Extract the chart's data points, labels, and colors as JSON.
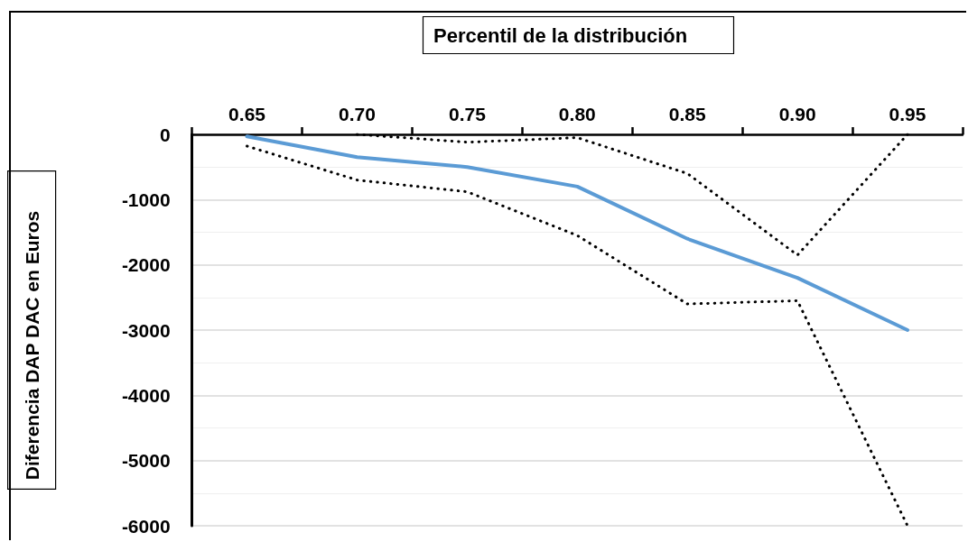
{
  "chart_data": {
    "type": "line",
    "xlabel": "Percentil de la distribución",
    "ylabel": "Diferencia DAP DAC en Euros",
    "categories": [
      "0.65",
      "0.70",
      "0.75",
      "0.80",
      "0.85",
      "0.90",
      "0.95"
    ],
    "series": [
      {
        "color": "#5b9bd5",
        "line_style": "solid",
        "values": [
          -30,
          -350,
          -500,
          -800,
          -1600,
          -2200,
          -3000
        ]
      },
      {
        "color": "#000000",
        "line_style": "dotted",
        "values": [
          null,
          0,
          -120,
          -50,
          -600,
          -1850,
          0
        ]
      },
      {
        "color": "#000000",
        "line_style": "dotted",
        "values": [
          -180,
          -700,
          -880,
          -1550,
          -2600,
          -2550,
          -6000
        ]
      }
    ],
    "ylim": [
      -6000,
      0
    ],
    "yticks": [
      -6000,
      -5000,
      -4000,
      -3000,
      -2000,
      -1000,
      0
    ],
    "grid": "y",
    "marker": "none"
  }
}
